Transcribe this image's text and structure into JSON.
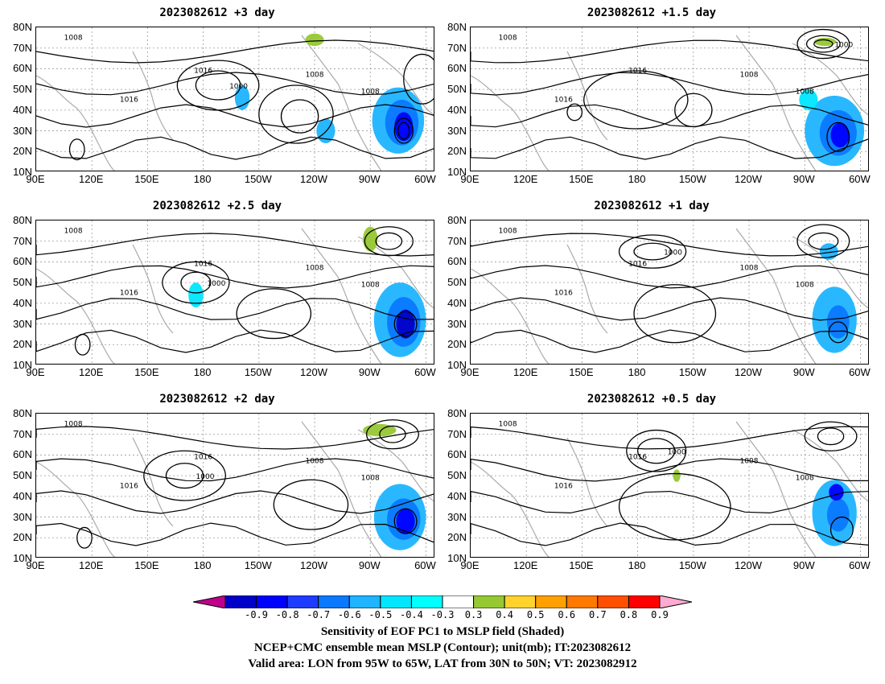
{
  "panels": [
    {
      "title": "2023082612 +3 day"
    },
    {
      "title": "2023082612 +1.5 day"
    },
    {
      "title": "2023082612 +2.5 day"
    },
    {
      "title": "2023082612 +1 day"
    },
    {
      "title": "2023082612 +2 day"
    },
    {
      "title": "2023082612 +0.5 day"
    }
  ],
  "axes": {
    "lat_labels": [
      "80N",
      "70N",
      "60N",
      "50N",
      "40N",
      "30N",
      "20N",
      "10N"
    ],
    "lon_labels": [
      "90E",
      "120E",
      "150E",
      "180",
      "150W",
      "120W",
      "90W",
      "60W"
    ],
    "lon_range": [
      90,
      305
    ],
    "lat_range": [
      10,
      80
    ]
  },
  "contour_labels": [
    "1008",
    "1016",
    "1000"
  ],
  "colorbar": {
    "ticks": [
      "-0.9",
      "-0.8",
      "-0.7",
      "-0.6",
      "-0.5",
      "-0.4",
      "-0.3",
      "0.3",
      "0.4",
      "0.5",
      "0.6",
      "0.7",
      "0.8",
      "0.9"
    ],
    "colors": [
      "#c0008c",
      "#0000c8",
      "#0000ff",
      "#1e3cff",
      "#0a78ff",
      "#1eb4ff",
      "#00e6ff",
      "#00ffff",
      "#ffffff",
      "#96c832",
      "#ffd22d",
      "#ffa000",
      "#ff7800",
      "#ff5000",
      "#ff0000",
      "#ffaad2"
    ]
  },
  "caption": {
    "line1": "Sensitivity of EOF PC1 to MSLP field (Shaded)",
    "line2": "NCEP+CMC ensemble mean MSLP (Contour); unit(mb); IT:2023082612",
    "line3": "Valid area: LON from 95W to 65W, LAT from 30N to 50N; VT: 2023082912"
  }
}
